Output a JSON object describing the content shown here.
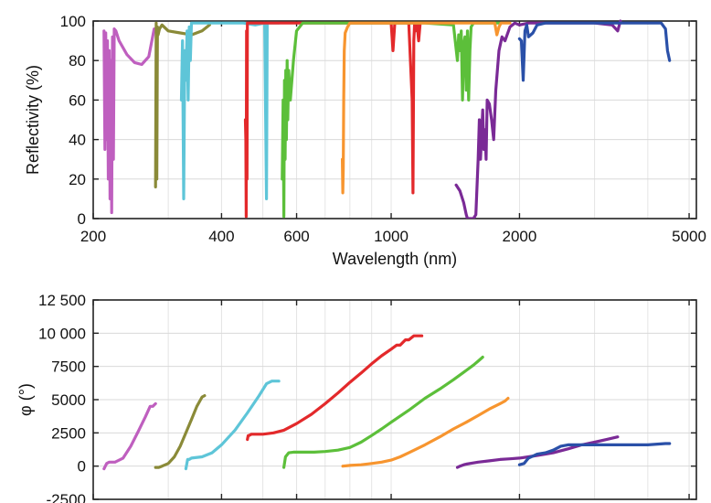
{
  "chart_data": [
    {
      "type": "line",
      "xscale": "log",
      "xlabel": "Wavelength (nm)",
      "ylabel": "Reflectivity (%)",
      "xlim": [
        200,
        5200
      ],
      "ylim": [
        0,
        100
      ],
      "grid": true,
      "xticks": [
        {
          "value": 200,
          "label": "200"
        },
        {
          "value": 400,
          "label": "400"
        },
        {
          "value": 600,
          "label": "600"
        },
        {
          "value": 1000,
          "label": "1000"
        },
        {
          "value": 2000,
          "label": "2000"
        },
        {
          "value": 5000,
          "label": "5000"
        }
      ],
      "yticks": [
        {
          "value": 0,
          "label": "0"
        },
        {
          "value": 20,
          "label": "20"
        },
        {
          "value": 40,
          "label": "40"
        },
        {
          "value": 60,
          "label": "60"
        },
        {
          "value": 80,
          "label": "80"
        },
        {
          "value": 100,
          "label": "100"
        }
      ],
      "series": [
        {
          "color": "#bf5fbf",
          "x": [
            212,
            213,
            214,
            215,
            216,
            217,
            218,
            219,
            220,
            221,
            222,
            223,
            224,
            226,
            230,
            240,
            250,
            260,
            270,
            278
          ],
          "y": [
            95,
            35,
            94,
            40,
            90,
            20,
            85,
            10,
            80,
            3,
            92,
            30,
            96,
            95,
            90,
            83,
            79,
            78,
            82,
            96
          ]
        },
        {
          "color": "#8a8a38",
          "x": [
            280,
            281,
            282,
            283,
            284,
            286,
            290,
            300,
            320,
            340,
            360,
            375
          ],
          "y": [
            16,
            99,
            20,
            97,
            93,
            96,
            98,
            95,
            94,
            93,
            95,
            98
          ]
        },
        {
          "color": "#5ec5d8",
          "x": [
            322,
            324,
            326,
            328,
            330,
            332,
            334,
            336,
            338,
            340,
            345,
            355,
            370,
            400,
            450,
            480,
            505,
            510,
            512,
            515,
            520,
            530,
            545
          ],
          "y": [
            60,
            90,
            10,
            85,
            70,
            95,
            60,
            97,
            80,
            99,
            99,
            99,
            99,
            99,
            99,
            98,
            99,
            10,
            99,
            99,
            99,
            99,
            99
          ]
        },
        {
          "color": "#e3292b",
          "x": [
            455,
            456,
            457,
            458,
            459,
            460,
            461,
            463,
            470,
            500,
            550,
            600,
            700,
            800,
            900,
            950,
            1000,
            1010,
            1020,
            1060,
            1100,
            1120,
            1125,
            1130,
            1135,
            1140,
            1150,
            1160,
            1170
          ],
          "y": [
            50,
            40,
            1,
            95,
            20,
            99,
            99,
            99,
            99,
            99,
            99,
            99,
            99,
            99,
            99,
            99,
            99,
            85,
            99,
            99,
            99,
            60,
            13,
            90,
            99,
            95,
            99,
            90,
            99
          ]
        },
        {
          "color": "#5cbf3a",
          "x": [
            555,
            558,
            560,
            562,
            564,
            566,
            568,
            570,
            572,
            575,
            580,
            590,
            600,
            620,
            650,
            700,
            800,
            900,
            1000,
            1200,
            1400,
            1430,
            1440,
            1450,
            1460,
            1470,
            1480,
            1490,
            1500,
            1510,
            1520,
            1530,
            1540,
            1560,
            1600,
            1700,
            1800
          ],
          "y": [
            20,
            60,
            1,
            70,
            30,
            75,
            40,
            80,
            50,
            75,
            60,
            80,
            95,
            99,
            99,
            99,
            99,
            99,
            99,
            99,
            98,
            80,
            93,
            85,
            95,
            60,
            88,
            92,
            65,
            95,
            60,
            85,
            97,
            99,
            99,
            99,
            99
          ]
        },
        {
          "color": "#f7952f",
          "x": [
            768,
            770,
            772,
            774,
            776,
            780,
            790,
            800,
            850,
            900,
            1000,
            1200,
            1500,
            1700,
            1750,
            1770,
            1790,
            1810,
            1850,
            1900
          ],
          "y": [
            30,
            13,
            25,
            60,
            85,
            94,
            97,
            99,
            99,
            99,
            99,
            99,
            99,
            99,
            99,
            93,
            97,
            99,
            99,
            99
          ]
        },
        {
          "color": "#7a2a96",
          "x": [
            1420,
            1450,
            1480,
            1500,
            1510,
            1530,
            1560,
            1580,
            1600,
            1610,
            1620,
            1640,
            1650,
            1660,
            1670,
            1680,
            1700,
            1720,
            1740,
            1760,
            1790,
            1820,
            1850,
            1900,
            1950,
            2000,
            2100,
            2500,
            3000,
            3300,
            3400,
            3450
          ],
          "y": [
            17,
            14,
            8,
            2,
            0,
            0,
            0,
            2,
            30,
            50,
            30,
            55,
            35,
            45,
            30,
            60,
            58,
            50,
            40,
            65,
            85,
            92,
            90,
            97,
            99,
            98,
            99,
            99,
            99,
            98,
            95,
            100
          ]
        },
        {
          "color": "#2a50a8",
          "x": [
            2000,
            2020,
            2040,
            2060,
            2080,
            2100,
            2150,
            2200,
            2300,
            2400,
            2500,
            3000,
            3500,
            4000,
            4300,
            4400,
            4450,
            4500
          ],
          "y": [
            91,
            90,
            70,
            95,
            98,
            92,
            94,
            98,
            99,
            99,
            99,
            99,
            99,
            99,
            99,
            96,
            85,
            80
          ]
        }
      ]
    },
    {
      "type": "line",
      "xscale": "log",
      "ylabel": "φ (°)",
      "xlim": [
        200,
        5200
      ],
      "ylim": [
        -2500,
        12500
      ],
      "grid": true,
      "xticks": [
        {
          "value": 200,
          "label": ""
        },
        {
          "value": 400,
          "label": ""
        },
        {
          "value": 600,
          "label": ""
        },
        {
          "value": 1000,
          "label": ""
        },
        {
          "value": 2000,
          "label": ""
        },
        {
          "value": 5000,
          "label": ""
        }
      ],
      "yticks": [
        {
          "value": -2500,
          "label": "-2500"
        },
        {
          "value": 0,
          "label": "0"
        },
        {
          "value": 2500,
          "label": "2500"
        },
        {
          "value": 5000,
          "label": "5000"
        },
        {
          "value": 7500,
          "label": "7500"
        },
        {
          "value": 10000,
          "label": "10 000"
        },
        {
          "value": 12500,
          "label": "12 500"
        }
      ],
      "series": [
        {
          "color": "#bf5fbf",
          "x": [
            212,
            215,
            218,
            225,
            235,
            245,
            255,
            265,
            272,
            276,
            280
          ],
          "y": [
            -200,
            200,
            300,
            300,
            600,
            1500,
            2600,
            3700,
            4500,
            4500,
            4700
          ]
        },
        {
          "color": "#8a8a38",
          "x": [
            280,
            285,
            290,
            300,
            310,
            320,
            330,
            340,
            350,
            360,
            365
          ],
          "y": [
            -100,
            -100,
            0,
            200,
            700,
            1500,
            2500,
            3500,
            4500,
            5200,
            5300
          ]
        },
        {
          "color": "#5ec5d8",
          "x": [
            330,
            333,
            336,
            340,
            360,
            380,
            400,
            430,
            460,
            490,
            510,
            525,
            545
          ],
          "y": [
            -200,
            500,
            500,
            600,
            700,
            1000,
            1600,
            2700,
            4000,
            5300,
            6200,
            6400,
            6400
          ]
        },
        {
          "color": "#e3292b",
          "x": [
            460,
            462,
            464,
            470,
            500,
            530,
            560,
            600,
            650,
            700,
            750,
            800,
            850,
            900,
            950,
            1000,
            1030,
            1050,
            1080,
            1100,
            1130,
            1160,
            1180
          ],
          "y": [
            2000,
            2300,
            2300,
            2400,
            2400,
            2500,
            2700,
            3200,
            3900,
            4700,
            5500,
            6300,
            7000,
            7700,
            8300,
            8800,
            9100,
            9100,
            9500,
            9500,
            9800,
            9800,
            9800
          ]
        },
        {
          "color": "#5cbf3a",
          "x": [
            560,
            565,
            575,
            590,
            620,
            660,
            700,
            750,
            800,
            850,
            900,
            950,
            1000,
            1100,
            1200,
            1300,
            1400,
            1500,
            1560,
            1600,
            1640
          ],
          "y": [
            -100,
            700,
            1000,
            1050,
            1050,
            1050,
            1100,
            1200,
            1400,
            1800,
            2300,
            2800,
            3300,
            4200,
            5100,
            5800,
            6500,
            7200,
            7600,
            7900,
            8200
          ]
        },
        {
          "color": "#f7952f",
          "x": [
            770,
            800,
            850,
            900,
            950,
            1000,
            1050,
            1100,
            1200,
            1300,
            1400,
            1500,
            1600,
            1700,
            1800,
            1850,
            1880
          ],
          "y": [
            0,
            50,
            100,
            200,
            300,
            450,
            700,
            1000,
            1600,
            2200,
            2800,
            3300,
            3800,
            4300,
            4700,
            4900,
            5100
          ]
        },
        {
          "color": "#7a2a96",
          "x": [
            1430,
            1450,
            1480,
            1500,
            1600,
            1700,
            1800,
            1900,
            2000,
            2100,
            2200,
            2300,
            2400,
            2600,
            2800,
            3000,
            3200,
            3400
          ],
          "y": [
            -100,
            0,
            100,
            150,
            300,
            400,
            500,
            550,
            600,
            700,
            800,
            900,
            1000,
            1300,
            1600,
            1800,
            2000,
            2200
          ]
        },
        {
          "color": "#2a50a8",
          "x": [
            2000,
            2050,
            2100,
            2200,
            2300,
            2400,
            2500,
            2600,
            2800,
            3000,
            3300,
            3600,
            4000,
            4400,
            4500
          ],
          "y": [
            100,
            200,
            600,
            900,
            1000,
            1200,
            1500,
            1600,
            1600,
            1600,
            1600,
            1600,
            1600,
            1700,
            1700
          ]
        }
      ]
    }
  ]
}
